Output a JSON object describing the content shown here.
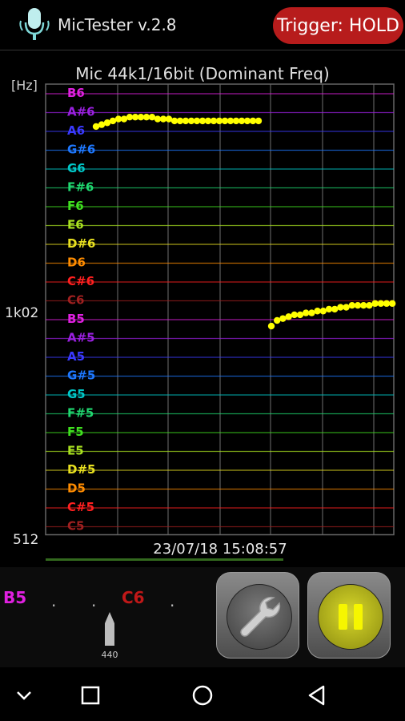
{
  "app": {
    "title": "MicTester v.2.8",
    "trigger_label": "Trigger: HOLD"
  },
  "colors": {
    "trigger_bg": "#b71c1c",
    "trace": "#ffff00",
    "grid": "#555555",
    "axis": "#cccccc"
  },
  "chart_data": {
    "type": "scatter",
    "title": "Mic 44k1/16bit (Dominant Freq)",
    "ylabel": "[Hz]",
    "y_ticks": [
      "1k02",
      "512"
    ],
    "ylim_note_range": [
      "C5",
      "B6"
    ],
    "note_labels": [
      {
        "name": "B6",
        "color": "#e020e0"
      },
      {
        "name": "A#6",
        "color": "#9a20e0"
      },
      {
        "name": "A6",
        "color": "#3a3aff"
      },
      {
        "name": "G#6",
        "color": "#1e78ff"
      },
      {
        "name": "G6",
        "color": "#00c8c8"
      },
      {
        "name": "F#6",
        "color": "#20d870"
      },
      {
        "name": "F6",
        "color": "#40e020"
      },
      {
        "name": "E6",
        "color": "#a8e020"
      },
      {
        "name": "D#6",
        "color": "#e8e020"
      },
      {
        "name": "D6",
        "color": "#ff8c00"
      },
      {
        "name": "C#6",
        "color": "#ff2020"
      },
      {
        "name": "C6",
        "color": "#a02020"
      },
      {
        "name": "B5",
        "color": "#e020e0"
      },
      {
        "name": "A#5",
        "color": "#9a20e0"
      },
      {
        "name": "A5",
        "color": "#3a3aff"
      },
      {
        "name": "G#5",
        "color": "#1e78ff"
      },
      {
        "name": "G5",
        "color": "#00c8c8"
      },
      {
        "name": "F#5",
        "color": "#20d870"
      },
      {
        "name": "F5",
        "color": "#40e020"
      },
      {
        "name": "E5",
        "color": "#a8e020"
      },
      {
        "name": "D#5",
        "color": "#e8e020"
      },
      {
        "name": "D5",
        "color": "#ff8c00"
      },
      {
        "name": "C#5",
        "color": "#ff2020"
      },
      {
        "name": "C5",
        "color": "#a02020"
      }
    ],
    "series": [
      {
        "pitch_semitones_above_C5": [
          21.3,
          21.4,
          21.5,
          21.6,
          21.7,
          21.7,
          21.8,
          21.8,
          21.8,
          21.8,
          21.8,
          21.7,
          21.7,
          21.7,
          21.6,
          21.6,
          21.6,
          21.6,
          21.6,
          21.6,
          21.6,
          21.6,
          21.6,
          21.6,
          21.6,
          21.6,
          21.6,
          21.6,
          21.6,
          21.6
        ]
      },
      {
        "pitch_semitones_above_C5": [
          10.7,
          11.0,
          11.1,
          11.2,
          11.3,
          11.3,
          11.4,
          11.4,
          11.5,
          11.5,
          11.6,
          11.6,
          11.7,
          11.7,
          11.8,
          11.8,
          11.8,
          11.8,
          11.9,
          11.9,
          11.9,
          11.9
        ]
      }
    ]
  },
  "timestamp": "23/07/18 15:08:57",
  "tuner": {
    "notes": [
      {
        "name": "B5",
        "color": "#e020e0"
      },
      {
        "name": "C6",
        "color": "#c01818"
      }
    ],
    "reference_hz": "440"
  },
  "icons": {
    "mic": "microphone-icon",
    "settings": "wrench-icon",
    "pause": "pause-icon"
  }
}
